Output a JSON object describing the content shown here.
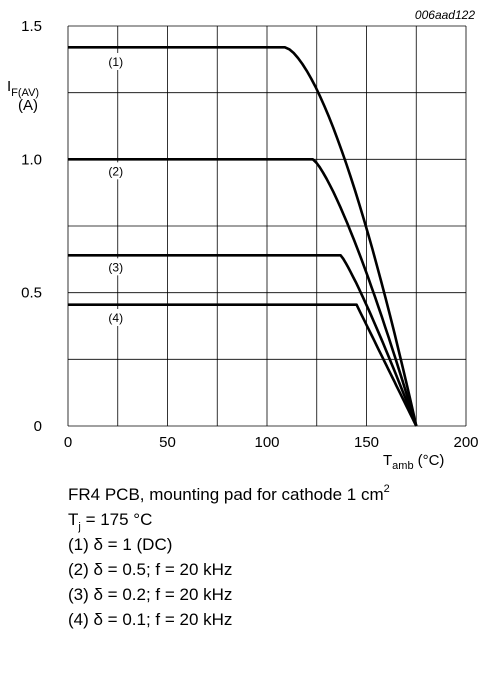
{
  "chart_data": {
    "type": "line",
    "figure_id": "006aad122",
    "ylabel": {
      "symbol": "I",
      "subscript": "F(AV)",
      "unit": "(A)"
    },
    "xlabel": {
      "symbol": "T",
      "subscript": "amb",
      "unit": "(°C)"
    },
    "xlim": [
      0,
      200
    ],
    "ylim": [
      0,
      1.5
    ],
    "x_ticks": [
      {
        "value": 0,
        "label": "0"
      },
      {
        "value": 50,
        "label": "50"
      },
      {
        "value": 100,
        "label": "100"
      },
      {
        "value": 150,
        "label": "150"
      },
      {
        "value": 200,
        "label": "200"
      }
    ],
    "y_ticks": [
      {
        "value": 0,
        "label": "0"
      },
      {
        "value": 0.5,
        "label": "0.5"
      },
      {
        "value": 1.0,
        "label": "1.0"
      },
      {
        "value": 1.5,
        "label": "1.5"
      }
    ],
    "x_grid": [
      0,
      25,
      50,
      75,
      100,
      125,
      150,
      175,
      200
    ],
    "y_grid": [
      0,
      0.25,
      0.5,
      0.75,
      1.0,
      1.25,
      1.5
    ],
    "grid": true,
    "series": [
      {
        "name": "(1)",
        "flat_value": 1.42,
        "knee_x": 109,
        "end_x": 175,
        "end_y": 0,
        "curvature": 1.55,
        "label_at": [
          24,
          1.35
        ]
      },
      {
        "name": "(2)",
        "flat_value": 1.0,
        "knee_x": 123,
        "end_x": 175,
        "end_y": 0,
        "curvature": 1.3,
        "label_at": [
          24,
          0.94
        ]
      },
      {
        "name": "(3)",
        "flat_value": 0.64,
        "knee_x": 137,
        "end_x": 175,
        "end_y": 0,
        "curvature": 1.15,
        "label_at": [
          24,
          0.58
        ]
      },
      {
        "name": "(4)",
        "flat_value": 0.455,
        "knee_x": 145,
        "end_x": 175,
        "end_y": 0,
        "curvature": 1.0,
        "label_at": [
          24,
          0.39
        ]
      }
    ]
  },
  "conditions": {
    "pcb": {
      "text": "FR4 PCB, mounting pad for cathode 1 cm",
      "sup": "2"
    },
    "tj": {
      "symbol": "T",
      "sub": "j",
      "rest": " = 175 °C"
    },
    "legend": [
      "(1) δ = 1 (DC)",
      "(2) δ = 0.5; f = 20 kHz",
      "(3) δ = 0.2; f = 20 kHz",
      "(4) δ = 0.1; f = 20 kHz"
    ]
  }
}
